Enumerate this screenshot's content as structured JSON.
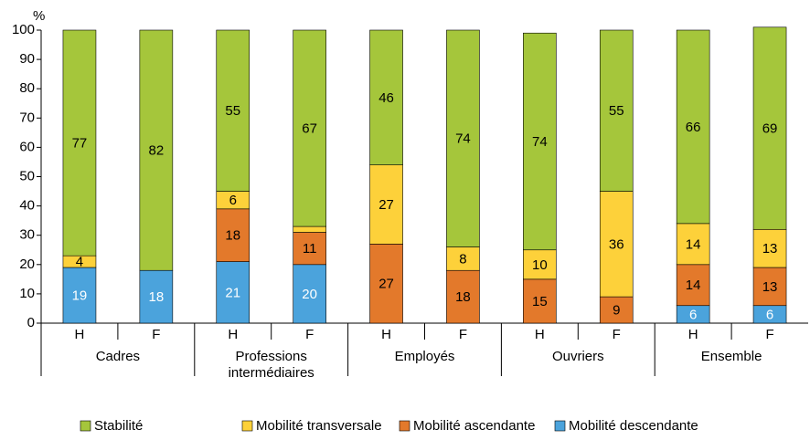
{
  "chart_data": {
    "type": "stacked_bar",
    "y_unit": "%",
    "categories": [
      "H",
      "F",
      "H",
      "F",
      "H",
      "F",
      "H",
      "F",
      "H",
      "F"
    ],
    "groups": [
      "Cadres",
      "Professions intermédiaires",
      "Employés",
      "Ouvriers",
      "Ensemble"
    ],
    "ylim": [
      0,
      100
    ],
    "yticks": [
      0,
      10,
      20,
      30,
      40,
      50,
      60,
      70,
      80,
      90,
      100
    ],
    "legend": "bottom",
    "series": [
      {
        "name": "Stabilité",
        "color": "#a5c63b",
        "values": [
          77,
          82,
          55,
          67,
          46,
          74,
          74,
          55,
          66,
          69
        ]
      },
      {
        "name": "Mobilité transversale",
        "color": "#fdd13a",
        "values": [
          4,
          null,
          6,
          2,
          27,
          8,
          10,
          36,
          14,
          13
        ],
        "value_labels": [
          "4",
          null,
          "6",
          null,
          "27",
          "8",
          "10",
          "36",
          "14",
          "13"
        ]
      },
      {
        "name": "Mobilité ascendante",
        "color": "#e3792b",
        "values": [
          null,
          null,
          18,
          11,
          27,
          18,
          15,
          9,
          14,
          13
        ]
      },
      {
        "name": "Mobilité descendante",
        "color": "#4ba3dc",
        "label_color": "#ffffff",
        "values": [
          19,
          18,
          21,
          20,
          null,
          null,
          null,
          null,
          6,
          6
        ]
      }
    ]
  }
}
